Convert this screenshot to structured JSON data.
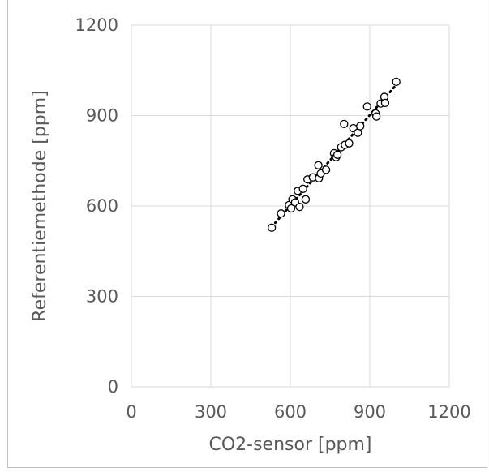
{
  "chart_data": {
    "type": "scatter",
    "title": "",
    "xlabel": "CO2-sensor [ppm]",
    "ylabel": "Referentiemethode [ppm]",
    "xlim": [
      0,
      1200
    ],
    "ylim": [
      0,
      1200
    ],
    "xticks": [
      0,
      300,
      600,
      900,
      1200
    ],
    "yticks": [
      0,
      300,
      600,
      900,
      1200
    ],
    "grid": true,
    "legend": "none",
    "marker": "open-circle",
    "trendline": {
      "style": "dotted",
      "x_range": [
        530,
        1000
      ]
    },
    "colors": {
      "marker": "#000000",
      "grid": "#d9d9d9",
      "text": "#595959",
      "trendline": "#000000"
    },
    "series": [
      {
        "points": [
          [
            530,
            528
          ],
          [
            565,
            575
          ],
          [
            595,
            603
          ],
          [
            603,
            592
          ],
          [
            608,
            622
          ],
          [
            618,
            612
          ],
          [
            628,
            650
          ],
          [
            635,
            597
          ],
          [
            648,
            657
          ],
          [
            658,
            622
          ],
          [
            665,
            688
          ],
          [
            685,
            695
          ],
          [
            706,
            735
          ],
          [
            708,
            692
          ],
          [
            715,
            708
          ],
          [
            735,
            720
          ],
          [
            765,
            775
          ],
          [
            773,
            762
          ],
          [
            778,
            770
          ],
          [
            792,
            795
          ],
          [
            803,
            872
          ],
          [
            806,
            803
          ],
          [
            822,
            808
          ],
          [
            838,
            858
          ],
          [
            855,
            843
          ],
          [
            864,
            865
          ],
          [
            890,
            930
          ],
          [
            922,
            907
          ],
          [
            925,
            897
          ],
          [
            941,
            940
          ],
          [
            955,
            962
          ],
          [
            958,
            942
          ],
          [
            1000,
            1012
          ]
        ]
      }
    ]
  }
}
